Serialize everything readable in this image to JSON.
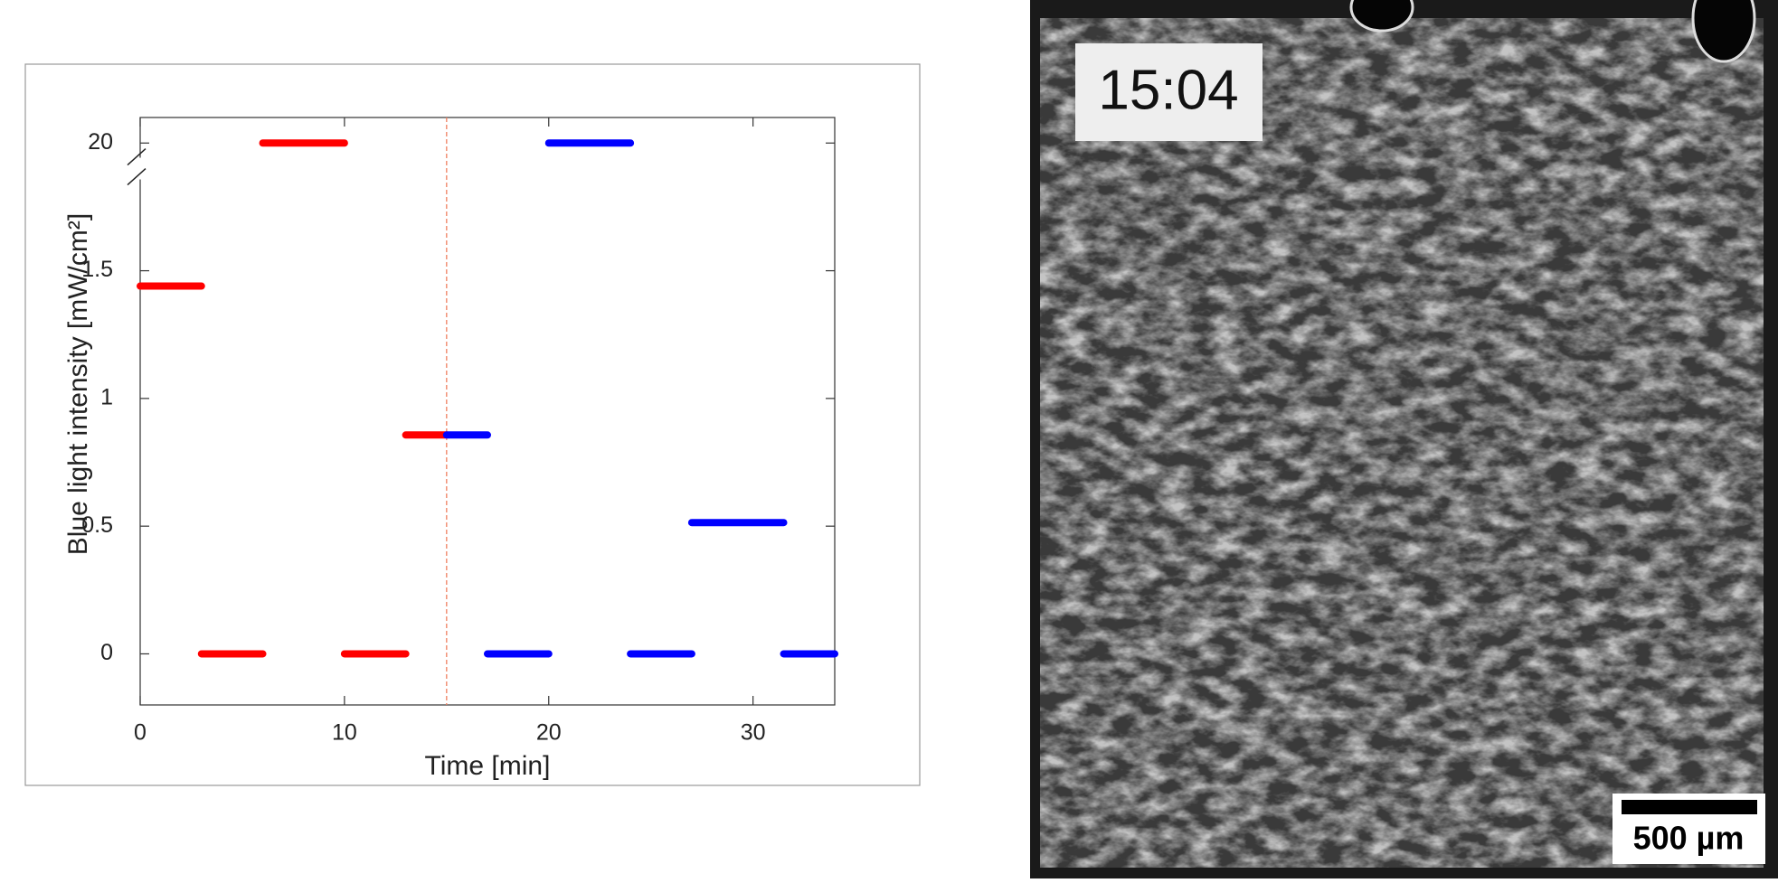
{
  "chart_data": {
    "type": "line",
    "ylabel": "Blue light intensity [mW/cm²]",
    "xlabel": "Time [min]",
    "xlim": [
      0,
      34
    ],
    "xticks": [
      0,
      10,
      20,
      30
    ],
    "ylim": [
      -0.2,
      20.1
    ],
    "yticks": [
      0,
      0.5,
      1,
      1.5,
      20
    ],
    "ybreak": [
      1.9,
      19.9
    ],
    "vline": 15,
    "vline_color": "#f08060",
    "series": [
      {
        "name": "red",
        "color": "#ff0000",
        "x": [
          0,
          3,
          null,
          3,
          6,
          null,
          6,
          10,
          null,
          10,
          13,
          null,
          13,
          15
        ],
        "values": [
          1.44,
          1.44,
          null,
          0,
          0,
          null,
          20,
          20,
          null,
          0,
          0,
          null,
          0.857,
          0.857
        ]
      },
      {
        "name": "blue",
        "color": "#0000ff",
        "x": [
          15,
          17,
          null,
          17,
          20,
          null,
          20,
          24,
          null,
          24,
          27,
          null,
          27,
          31.5,
          null,
          31.5,
          34
        ],
        "values": [
          0.857,
          0.857,
          null,
          0,
          0,
          null,
          20,
          20,
          null,
          0,
          0,
          null,
          0.514,
          0.514,
          null,
          0,
          0
        ]
      }
    ]
  },
  "image": {
    "timestamp": "15:04",
    "scale_bar": "500 µm"
  }
}
